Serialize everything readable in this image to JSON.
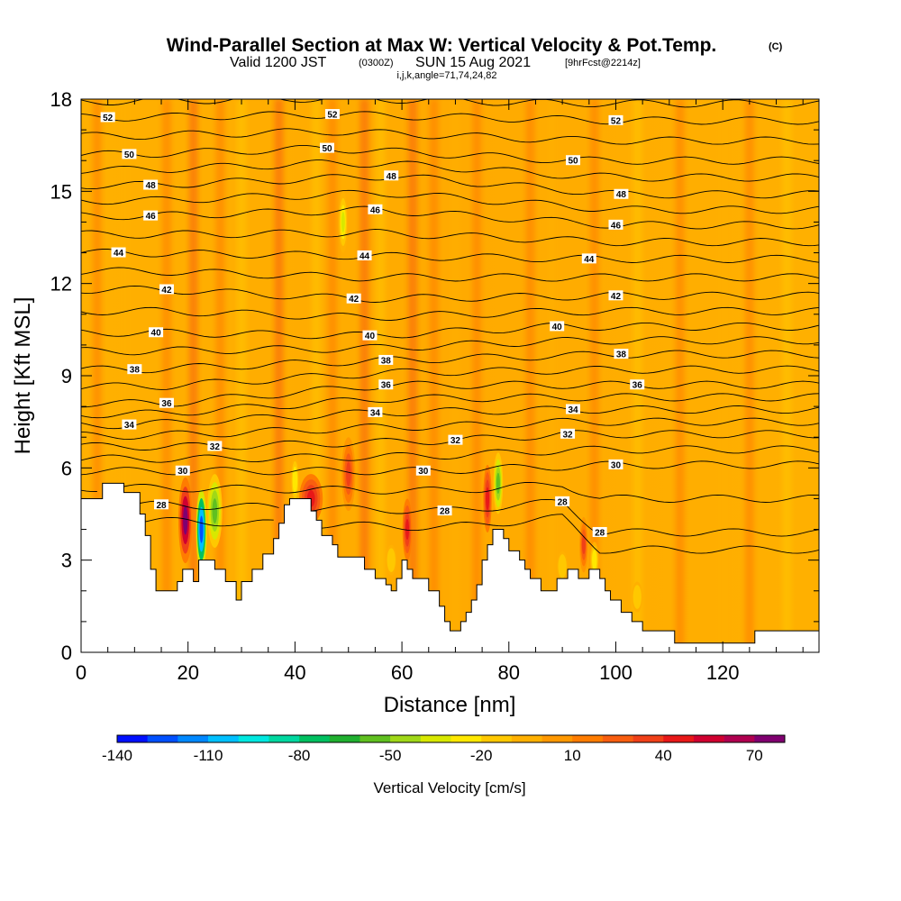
{
  "title": {
    "main": "Wind-Parallel Section at Max W: Vertical Velocity & Pot.Temp.",
    "main_unit": "(C)",
    "sub_valid": "Valid 1200 JST",
    "sub_utc": "(0300Z)",
    "sub_date": "SUN 15 Aug 2021",
    "sub_fcst": "[9hrFcst@2214z]",
    "sub2": "i,j,k,angle=71,74,24,82"
  },
  "chart_data": {
    "type": "heatmap",
    "xlabel": "Distance [nm]",
    "ylabel": "Height [Kft MSL]",
    "xlim": [
      0,
      138
    ],
    "ylim": [
      0,
      18
    ],
    "x_ticks": [
      "0",
      "20",
      "40",
      "60",
      "80",
      "100",
      "120"
    ],
    "x_tick_values": [
      0,
      20,
      40,
      60,
      80,
      100,
      120
    ],
    "y_ticks": [
      "0",
      "3",
      "6",
      "9",
      "12",
      "15",
      "18"
    ],
    "y_tick_values": [
      0,
      3,
      6,
      9,
      12,
      15,
      18
    ],
    "terrain": [
      [
        0,
        5
      ],
      [
        4,
        5
      ],
      [
        4,
        5.5
      ],
      [
        8,
        5.5
      ],
      [
        8,
        5.2
      ],
      [
        11,
        5.2
      ],
      [
        11,
        4.5
      ],
      [
        12,
        4.5
      ],
      [
        12,
        3.8
      ],
      [
        13,
        3.8
      ],
      [
        13,
        2.7
      ],
      [
        14,
        2.7
      ],
      [
        14,
        2
      ],
      [
        18,
        2
      ],
      [
        18,
        2.3
      ],
      [
        19,
        2.3
      ],
      [
        19,
        2.7
      ],
      [
        21,
        2.7
      ],
      [
        21,
        2.3
      ],
      [
        22,
        2.3
      ],
      [
        22,
        3
      ],
      [
        25,
        3
      ],
      [
        25,
        2.7
      ],
      [
        27,
        2.7
      ],
      [
        27,
        2.3
      ],
      [
        29,
        2.3
      ],
      [
        29,
        1.7
      ],
      [
        30,
        1.7
      ],
      [
        30,
        2.3
      ],
      [
        32,
        2.3
      ],
      [
        32,
        2.7
      ],
      [
        34,
        2.7
      ],
      [
        34,
        3.2
      ],
      [
        36,
        3.2
      ],
      [
        36,
        3.7
      ],
      [
        37,
        3.7
      ],
      [
        37,
        4.2
      ],
      [
        38,
        4.2
      ],
      [
        38,
        4.8
      ],
      [
        39,
        4.8
      ],
      [
        39,
        5
      ],
      [
        43,
        5
      ],
      [
        43,
        4.6
      ],
      [
        44,
        4.6
      ],
      [
        44,
        4.3
      ],
      [
        45,
        4.3
      ],
      [
        45,
        3.8
      ],
      [
        47,
        3.8
      ],
      [
        47,
        3.5
      ],
      [
        48,
        3.5
      ],
      [
        48,
        3.1
      ],
      [
        53,
        3.1
      ],
      [
        53,
        2.7
      ],
      [
        55,
        2.7
      ],
      [
        55,
        2.4
      ],
      [
        57,
        2.4
      ],
      [
        57,
        2.2
      ],
      [
        58,
        2.2
      ],
      [
        58,
        2
      ],
      [
        59,
        2
      ],
      [
        59,
        2.4
      ],
      [
        60,
        2.4
      ],
      [
        60,
        3
      ],
      [
        61,
        3
      ],
      [
        61,
        2.7
      ],
      [
        62,
        2.7
      ],
      [
        62,
        2.4
      ],
      [
        65,
        2.4
      ],
      [
        65,
        2
      ],
      [
        67,
        2
      ],
      [
        67,
        1.5
      ],
      [
        68,
        1.5
      ],
      [
        68,
        1
      ],
      [
        69,
        1
      ],
      [
        69,
        0.7
      ],
      [
        71,
        0.7
      ],
      [
        71,
        1
      ],
      [
        72,
        1
      ],
      [
        72,
        1.3
      ],
      [
        73,
        1.3
      ],
      [
        73,
        1.7
      ],
      [
        74,
        1.7
      ],
      [
        74,
        2.2
      ],
      [
        75,
        2.2
      ],
      [
        75,
        3
      ],
      [
        76,
        3
      ],
      [
        76,
        3.5
      ],
      [
        77,
        3.5
      ],
      [
        77,
        4
      ],
      [
        79,
        4
      ],
      [
        79,
        3.7
      ],
      [
        80,
        3.7
      ],
      [
        80,
        3.3
      ],
      [
        82,
        3.3
      ],
      [
        82,
        3
      ],
      [
        83,
        3
      ],
      [
        83,
        2.7
      ],
      [
        84,
        2.7
      ],
      [
        84,
        2.4
      ],
      [
        86,
        2.4
      ],
      [
        86,
        2
      ],
      [
        89,
        2
      ],
      [
        89,
        2.4
      ],
      [
        91,
        2.4
      ],
      [
        91,
        2.7
      ],
      [
        93,
        2.7
      ],
      [
        93,
        2.4
      ],
      [
        95,
        2.4
      ],
      [
        95,
        2.7
      ],
      [
        97,
        2.7
      ],
      [
        97,
        2.4
      ],
      [
        98,
        2.4
      ],
      [
        98,
        2
      ],
      [
        99,
        2
      ],
      [
        99,
        1.7
      ],
      [
        101,
        1.7
      ],
      [
        101,
        1.3
      ],
      [
        103,
        1.3
      ],
      [
        103,
        1
      ],
      [
        105,
        1
      ],
      [
        105,
        0.7
      ],
      [
        111,
        0.7
      ],
      [
        111,
        0.3
      ],
      [
        126,
        0.3
      ],
      [
        126,
        0.7
      ],
      [
        138,
        0.7
      ]
    ],
    "vertical_velocity_features": [
      {
        "x": 19.5,
        "y": 4.3,
        "value": 70,
        "sx": 1.3,
        "sy": 1.4
      },
      {
        "x": 22.5,
        "y": 4.0,
        "value": -130,
        "sx": 1.0,
        "sy": 1.3
      },
      {
        "x": 25,
        "y": 4.6,
        "value": -60,
        "sx": 1.4,
        "sy": 1.2
      },
      {
        "x": 40,
        "y": 5.6,
        "value": -30,
        "sx": 0.8,
        "sy": 0.8
      },
      {
        "x": 43,
        "y": 5.0,
        "value": 40,
        "sx": 2.2,
        "sy": 0.8
      },
      {
        "x": 50,
        "y": 5.8,
        "value": 35,
        "sx": 1.3,
        "sy": 1.2
      },
      {
        "x": 61,
        "y": 4.0,
        "value": 40,
        "sx": 0.9,
        "sy": 1.0
      },
      {
        "x": 76,
        "y": 5.0,
        "value": 40,
        "sx": 0.8,
        "sy": 1.1
      },
      {
        "x": 78,
        "y": 5.5,
        "value": -55,
        "sx": 0.9,
        "sy": 1.0
      },
      {
        "x": 94,
        "y": 3.5,
        "value": 35,
        "sx": 0.8,
        "sy": 0.9
      },
      {
        "x": 49,
        "y": 14.0,
        "value": -35,
        "sx": 0.9,
        "sy": 1.0
      },
      {
        "x": 58,
        "y": 3.0,
        "value": -20,
        "sx": 1.0,
        "sy": 0.5
      },
      {
        "x": 90,
        "y": 2.8,
        "value": -20,
        "sx": 1.0,
        "sy": 0.5
      },
      {
        "x": 96,
        "y": 3.0,
        "value": -30,
        "sx": 0.8,
        "sy": 0.6
      },
      {
        "x": 104,
        "y": 1.8,
        "value": -20,
        "sx": 1.0,
        "sy": 0.5
      }
    ],
    "theta_contour_labels": [
      {
        "x": 5,
        "y": 17.4,
        "label": "52"
      },
      {
        "x": 47,
        "y": 17.5,
        "label": "52"
      },
      {
        "x": 100,
        "y": 17.3,
        "label": "52"
      },
      {
        "x": 9,
        "y": 16.2,
        "label": "50"
      },
      {
        "x": 46,
        "y": 16.4,
        "label": "50"
      },
      {
        "x": 92,
        "y": 16.0,
        "label": "50"
      },
      {
        "x": 13,
        "y": 15.2,
        "label": "48"
      },
      {
        "x": 58,
        "y": 15.5,
        "label": "48"
      },
      {
        "x": 101,
        "y": 14.9,
        "label": "48"
      },
      {
        "x": 13,
        "y": 14.2,
        "label": "46"
      },
      {
        "x": 55,
        "y": 14.4,
        "label": "46"
      },
      {
        "x": 100,
        "y": 13.9,
        "label": "46"
      },
      {
        "x": 7,
        "y": 13.0,
        "label": "44"
      },
      {
        "x": 53,
        "y": 12.9,
        "label": "44"
      },
      {
        "x": 95,
        "y": 12.8,
        "label": "44"
      },
      {
        "x": 16,
        "y": 11.8,
        "label": "42"
      },
      {
        "x": 51,
        "y": 11.5,
        "label": "42"
      },
      {
        "x": 100,
        "y": 11.6,
        "label": "42"
      },
      {
        "x": 14,
        "y": 10.4,
        "label": "40"
      },
      {
        "x": 54,
        "y": 10.3,
        "label": "40"
      },
      {
        "x": 89,
        "y": 10.6,
        "label": "40"
      },
      {
        "x": 10,
        "y": 9.2,
        "label": "38"
      },
      {
        "x": 57,
        "y": 9.5,
        "label": "38"
      },
      {
        "x": 101,
        "y": 9.7,
        "label": "38"
      },
      {
        "x": 16,
        "y": 8.1,
        "label": "36"
      },
      {
        "x": 57,
        "y": 8.7,
        "label": "36"
      },
      {
        "x": 104,
        "y": 8.7,
        "label": "36"
      },
      {
        "x": 9,
        "y": 7.4,
        "label": "34"
      },
      {
        "x": 55,
        "y": 7.8,
        "label": "34"
      },
      {
        "x": 92,
        "y": 7.9,
        "label": "34"
      },
      {
        "x": 25,
        "y": 6.7,
        "label": "32"
      },
      {
        "x": 70,
        "y": 6.9,
        "label": "32"
      },
      {
        "x": 91,
        "y": 7.1,
        "label": "32"
      },
      {
        "x": 19,
        "y": 5.9,
        "label": "30"
      },
      {
        "x": 64,
        "y": 5.9,
        "label": "30"
      },
      {
        "x": 100,
        "y": 6.1,
        "label": "30"
      },
      {
        "x": 15,
        "y": 4.8,
        "label": "28"
      },
      {
        "x": 68,
        "y": 4.6,
        "label": "28"
      },
      {
        "x": 90,
        "y": 4.9,
        "label": "28"
      },
      {
        "x": 97,
        "y": 3.9,
        "label": "28"
      }
    ],
    "colorbar": {
      "title": "Vertical Velocity [cm/s]",
      "tick_labels": [
        "-140",
        "-110",
        "-80",
        "-50",
        "-20",
        "10",
        "40",
        "70"
      ],
      "tick_values": [
        -140,
        -110,
        -80,
        -50,
        -20,
        10,
        40,
        70
      ],
      "range": [
        -140,
        80
      ],
      "step": 10,
      "colors": [
        "#0010ff",
        "#0050ff",
        "#0088ff",
        "#00c0ff",
        "#00e8e0",
        "#00d8a0",
        "#00c060",
        "#20b030",
        "#60c020",
        "#a0d818",
        "#d8e800",
        "#ffe800",
        "#ffc800",
        "#ffb000",
        "#ff9800",
        "#ff7c00",
        "#f85e10",
        "#f04018",
        "#e81818",
        "#d00030",
        "#b00050",
        "#800070"
      ]
    }
  }
}
